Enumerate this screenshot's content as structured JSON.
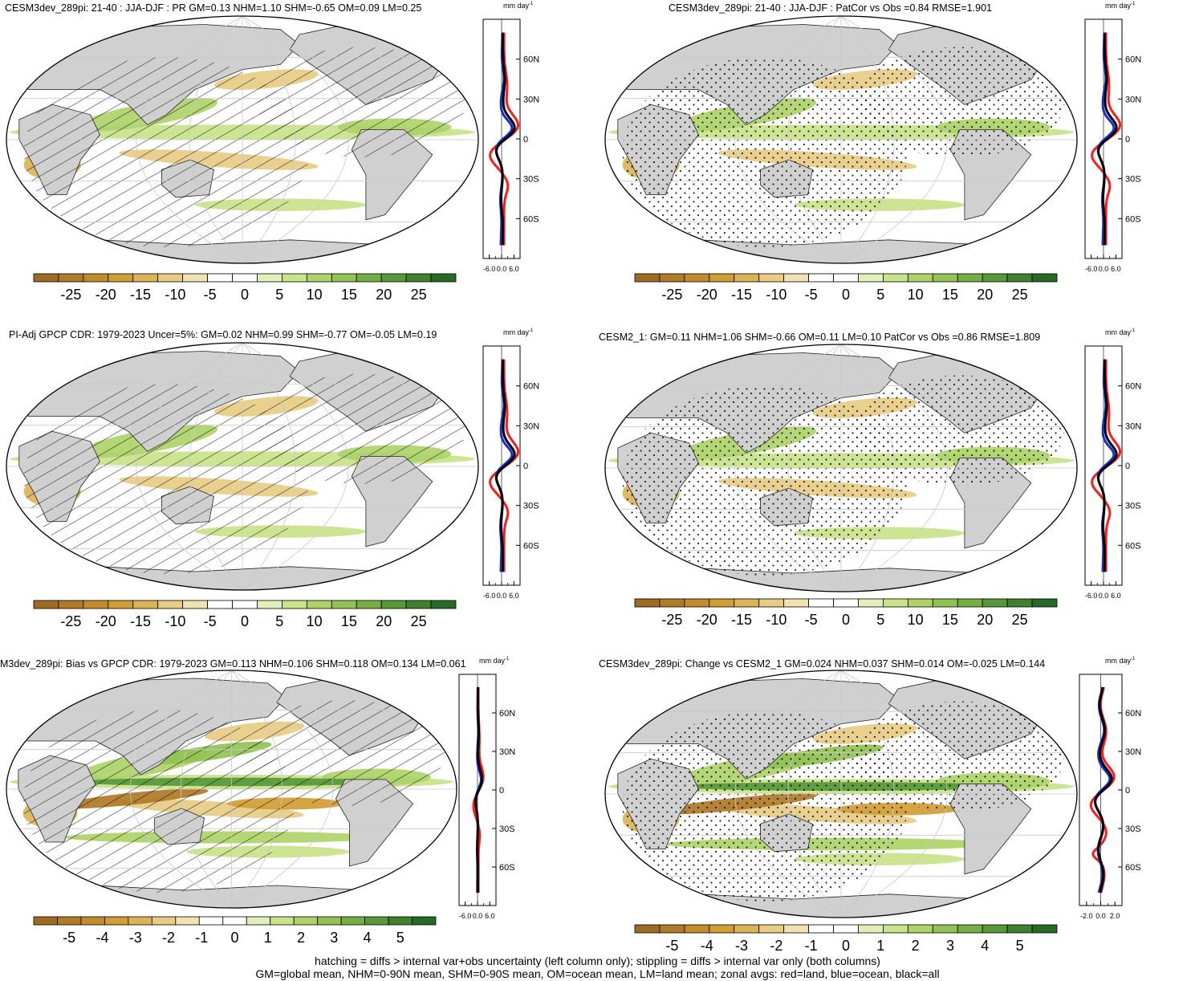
{
  "panels": [
    {
      "id": "p1",
      "title": "CESM3dev_289pi: 21-40 : JJA-DJF : PR GM=0.13 NHM=1.10 SHM=-0.65 OM=0.09 LM=0.25",
      "units": "mm day",
      "units_sup": "-1",
      "pattern": "hatch",
      "zonal_xticks": [
        "-6.0",
        "0.0",
        "6.0"
      ],
      "zonal_xrange": [
        -9,
        9
      ],
      "lat_labels": [
        "60N",
        "30N",
        "0",
        "30S",
        "60S"
      ],
      "colorbar_labels": [
        "-25",
        "-20",
        "-15",
        "-10",
        "-5",
        "0",
        "5",
        "10",
        "15",
        "20",
        "25"
      ]
    },
    {
      "id": "p2",
      "title": "CESM3dev_289pi: 21-40 : JJA-DJF : PatCor vs Obs =0.84 RMSE=1.901",
      "units": "mm day",
      "units_sup": "-1",
      "pattern": "stipple",
      "zonal_xticks": [
        "-6.0",
        "0.0",
        "6.0"
      ],
      "zonal_xrange": [
        -9,
        9
      ],
      "lat_labels": [
        "60N",
        "30N",
        "0",
        "30S",
        "60S"
      ],
      "colorbar_labels": [
        "-25",
        "-20",
        "-15",
        "-10",
        "-5",
        "0",
        "5",
        "10",
        "15",
        "20",
        "25"
      ]
    },
    {
      "id": "p3",
      "title": "PI-Adj GPCP CDR: 1979-2023 Uncer=5%: GM=0.02 NHM=0.99 SHM=-0.77 OM=-0.05 LM=0.19",
      "units": "mm day",
      "units_sup": "-1",
      "pattern": "hatch",
      "zonal_xticks": [
        "-6.0",
        "0.0",
        "6.0"
      ],
      "zonal_xrange": [
        -9,
        9
      ],
      "lat_labels": [
        "60N",
        "30N",
        "0",
        "30S",
        "60S"
      ],
      "colorbar_labels": [
        "-25",
        "-20",
        "-15",
        "-10",
        "-5",
        "0",
        "5",
        "10",
        "15",
        "20",
        "25"
      ]
    },
    {
      "id": "p4",
      "title": "CESM2_1: GM=0.11 NHM=1.06 SHM=-0.66 OM=0.11 LM=0.10 PatCor vs Obs =0.86 RMSE=1.809",
      "units": "mm day",
      "units_sup": "-1",
      "pattern": "stipple",
      "zonal_xticks": [
        "-6.0",
        "0.0",
        "6.0"
      ],
      "zonal_xrange": [
        -9,
        9
      ],
      "lat_labels": [
        "60N",
        "30N",
        "0",
        "30S",
        "60S"
      ],
      "colorbar_labels": [
        "-25",
        "-20",
        "-15",
        "-10",
        "-5",
        "0",
        "5",
        "10",
        "15",
        "20",
        "25"
      ]
    },
    {
      "id": "p5",
      "title": "M3dev_289pi: Bias vs GPCP CDR: 1979-2023 GM=0.113 NHM=0.106 SHM=0.118 OM=0.134 LM=0.061",
      "units": "mm day",
      "units_sup": "-1",
      "pattern": "hatch",
      "zonal_xticks": [
        "-6.0",
        "0.0",
        "6.0"
      ],
      "zonal_xrange": [
        -9,
        9
      ],
      "lat_labels": [
        "60N",
        "30N",
        "0",
        "30S",
        "60S"
      ],
      "colorbar_labels": [
        "-5",
        "-4",
        "-3",
        "-2",
        "-1",
        "0",
        "1",
        "2",
        "3",
        "4",
        "5"
      ]
    },
    {
      "id": "p6",
      "title": "CESM3dev_289pi: Change vs CESM2_1 GM=0.024 NHM=0.037 SHM=0.014 OM=-0.025 LM=0.144",
      "units": "mm day",
      "units_sup": "-1",
      "pattern": "stipple",
      "zonal_xticks": [
        "-2.0",
        "0.0",
        "2.0"
      ],
      "zonal_xrange": [
        -3,
        3
      ],
      "lat_labels": [
        "60N",
        "30N",
        "0",
        "30S",
        "60S"
      ],
      "colorbar_labels": [
        "-5",
        "-4",
        "-3",
        "-2",
        "-1",
        "0",
        "1",
        "2",
        "3",
        "4",
        "5"
      ]
    }
  ],
  "palette": [
    "#9e6b22",
    "#b07a27",
    "#c28b2c",
    "#d19d35",
    "#dcb458",
    "#e8cc86",
    "#f1e2b4",
    "#ffffff",
    "#ffffff",
    "#e2efbb",
    "#c9e38a",
    "#aed269",
    "#92c254",
    "#74ae45",
    "#579839",
    "#3f812f",
    "#286a25"
  ],
  "land_color": "#d0d0d0",
  "zonal_line_colors": {
    "land": "#ff1a1a",
    "ocean": "#1a2bd9",
    "all": "#000000"
  },
  "footer": {
    "line1": "hatching = diffs > internal var+obs uncertainty (left column only); stippling = diffs > internal var only (both columns)",
    "line2": "GM=global mean, NHM=0-90N mean, SHM=0-90S mean, OM=ocean mean, LM=land mean; zonal avgs: red=land, blue=ocean, black=all"
  }
}
